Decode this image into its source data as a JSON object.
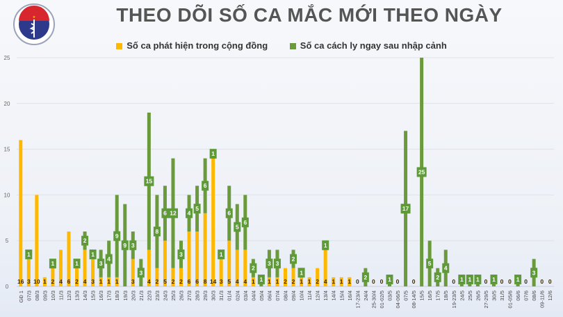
{
  "logo": {
    "top_text": "BỘ Y TẾ",
    "bottom_text": "MINISTRY OF HEALTH"
  },
  "colors": {
    "community": "#ffb800",
    "isolated": "#6a9a3c",
    "label_box": "#5e9a38"
  },
  "chart_data": {
    "type": "bar",
    "stacked": true,
    "title": "THEO DÕI SỐ CA MẮC MỚI THEO NGÀY",
    "legend_placement": "top",
    "grid": true,
    "ylim": [
      0,
      25
    ],
    "yticks": [
      0,
      5,
      10,
      15,
      20,
      25
    ],
    "categories": [
      "GĐ 1",
      "07/3",
      "08/3",
      "09/3",
      "10/3",
      "11/3",
      "12/3",
      "13/3",
      "14/3",
      "15/3",
      "16/3",
      "17/3",
      "18/3",
      "19/3",
      "20/3",
      "21/3",
      "22/3",
      "23/3",
      "24/3",
      "25/3",
      "26/3",
      "27/3",
      "28/3",
      "29/3",
      "30/3",
      "31/3",
      "01/4",
      "02/4",
      "03/4",
      "04/4",
      "05/4",
      "06/4",
      "07/4",
      "08/4",
      "09/4",
      "10/4",
      "11/4",
      "12/4",
      "13/4",
      "14/4",
      "15/4",
      "16/4",
      "17-23/4",
      "24/4",
      "25-30/4",
      "01-02/5",
      "03/5",
      "04-06/5",
      "07/5",
      "08-14/5",
      "15/5",
      "16/5",
      "17/5",
      "18/5",
      "19-23/5",
      "24/5",
      "25/5",
      "26/5",
      "27-29/5",
      "30/5",
      "31/5",
      "01-05/6",
      "06/6",
      "07/6",
      "08/6",
      "09-11/6",
      "12/6"
    ],
    "series": [
      {
        "name": "Số ca phát hiện trong cộng đồng",
        "values": [
          16,
          3,
          10,
          1,
          2,
          4,
          6,
          2,
          4,
          3,
          1,
          1,
          1,
          0,
          3,
          0,
          4,
          2,
          5,
          2,
          2,
          6,
          6,
          8,
          14,
          3,
          5,
          4,
          4,
          1,
          0,
          1,
          1,
          2,
          2,
          1,
          1,
          2,
          4,
          1,
          1,
          1,
          0,
          0,
          0,
          0,
          0,
          0,
          0,
          0,
          0,
          0,
          0,
          0,
          0,
          0,
          0,
          0,
          0,
          0,
          0,
          0,
          0,
          0,
          0,
          0,
          0
        ]
      },
      {
        "name": "Số ca cách ly ngay sau nhập cảnh",
        "values": [
          0,
          1,
          0,
          0,
          1,
          0,
          0,
          1,
          2,
          1,
          3,
          4,
          9,
          9,
          3,
          3,
          15,
          8,
          6,
          12,
          3,
          4,
          5,
          6,
          1,
          1,
          6,
          5,
          6,
          2,
          1,
          3,
          3,
          0,
          2,
          1,
          0,
          0,
          1,
          0,
          0,
          0,
          0,
          2,
          0,
          0,
          1,
          0,
          17,
          0,
          25,
          5,
          2,
          4,
          0,
          1,
          1,
          1,
          0,
          1,
          0,
          0,
          1,
          0,
          3,
          0,
          0
        ]
      }
    ]
  }
}
